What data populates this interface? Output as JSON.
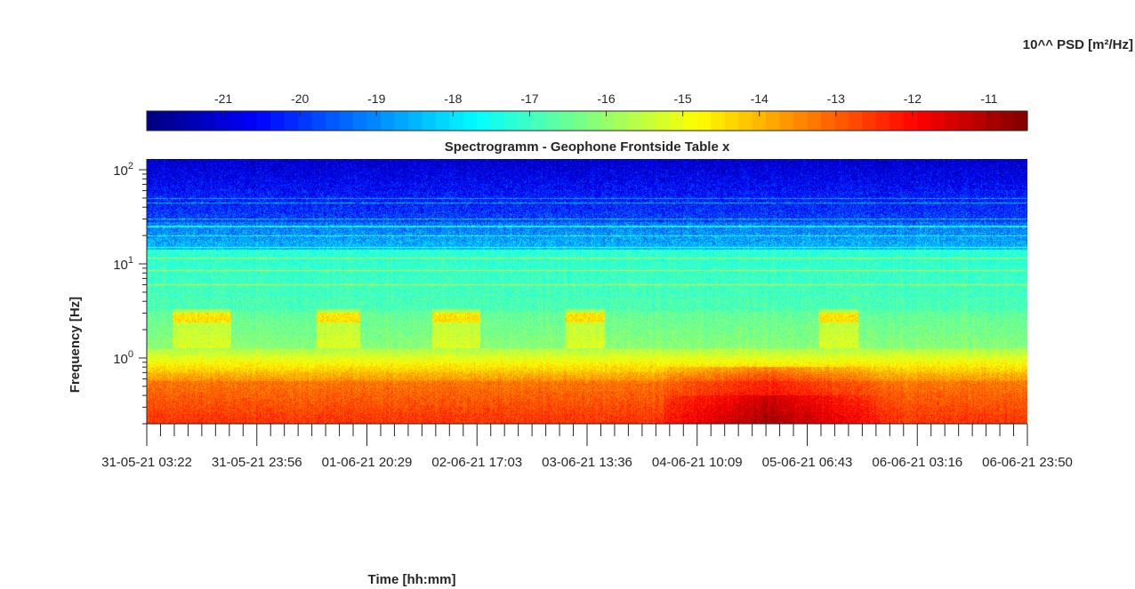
{
  "chart_data": {
    "type": "heatmap",
    "title": "Spectrogramm - Geophone Frontside Table x",
    "xlabel": "Time [hh:mm]",
    "ylabel": "Frequency [Hz]",
    "y_scale": "log",
    "ylim": [
      0.2,
      130
    ],
    "y_ticks": [
      {
        "value": 1,
        "base": "10",
        "exp": "0"
      },
      {
        "value": 10,
        "base": "10",
        "exp": "1"
      },
      {
        "value": 100,
        "base": "10",
        "exp": "2"
      }
    ],
    "x_tick_labels": [
      "31-05-21 03:22",
      "31-05-21 23:56",
      "01-06-21 20:29",
      "02-06-21 17:03",
      "03-06-21 13:36",
      "04-06-21 10:09",
      "05-06-21 06:43",
      "06-06-21 03:16",
      "06-06-21 23:50"
    ],
    "colorbar": {
      "label": "10^^ PSD [m²/Hz]",
      "colormap": "jet",
      "range": [
        -22.0,
        -10.5
      ],
      "ticks": [
        "-21",
        "-20",
        "-19",
        "-18",
        "-17",
        "-16",
        "-15",
        "-14",
        "-13",
        "-12",
        "-11"
      ]
    },
    "grid": false,
    "colors": {
      "axis": "#262626",
      "background": "#ffffff"
    }
  }
}
